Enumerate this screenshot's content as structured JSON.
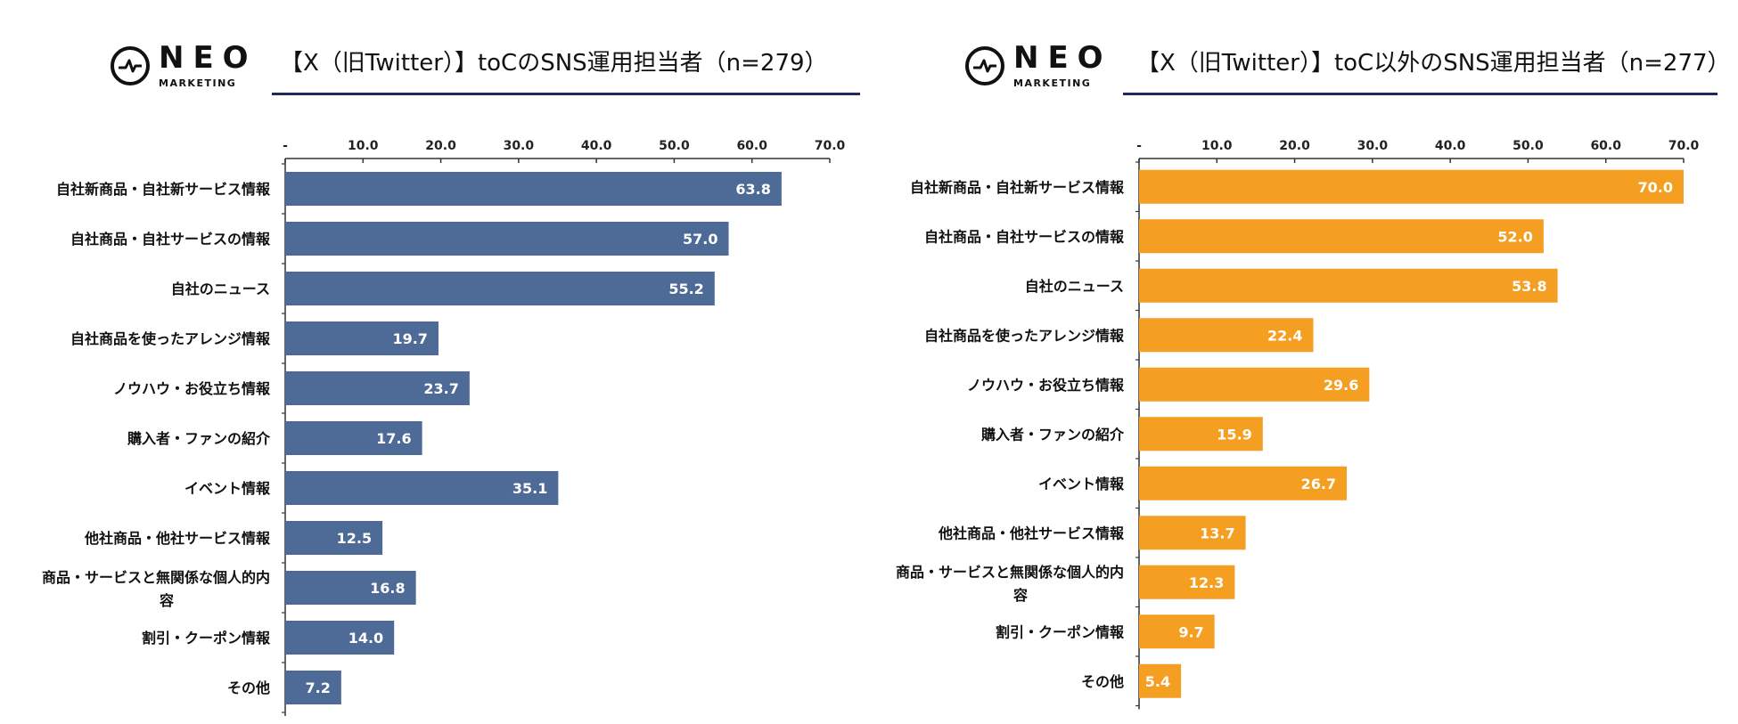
{
  "logo": {
    "word": "NEO",
    "sub": "MARKETING"
  },
  "categories": [
    "自社新商品・自社新サービス情報",
    "自社商品・自社サービスの情報",
    "自社のニュース",
    "自社商品を使ったアレンジ情報",
    "ノウハウ・お役立ち情報",
    "購入者・ファンの紹介",
    "イベント情報",
    "他社商品・他社サービス情報",
    "商品・サービスと無関係な個人的内容",
    "割引・クーポン情報",
    "その他"
  ],
  "chart_data": [
    {
      "type": "bar",
      "orientation": "horizontal",
      "title": "【X（旧Twitter）】toCのSNS運用担当者（n=279）",
      "color": "#4e6a96",
      "xlim": [
        0,
        70
      ],
      "ticks": [
        "-",
        "10.0",
        "20.0",
        "30.0",
        "40.0",
        "50.0",
        "60.0",
        "70.0"
      ],
      "values": [
        63.8,
        57.0,
        55.2,
        19.7,
        23.7,
        17.6,
        35.1,
        12.5,
        16.8,
        14.0,
        7.2
      ],
      "labels": [
        "63.8",
        "57.0",
        "55.2",
        "19.7",
        "23.7",
        "17.6",
        "35.1",
        "12.5",
        "16.8",
        "14.0",
        "7.2"
      ]
    },
    {
      "type": "bar",
      "orientation": "horizontal",
      "title": "【X（旧Twitter）】toC以外のSNS運用担当者（n=277）",
      "color": "#f49e22",
      "xlim": [
        0,
        70
      ],
      "ticks": [
        "-",
        "10.0",
        "20.0",
        "30.0",
        "40.0",
        "50.0",
        "60.0",
        "70.0"
      ],
      "values": [
        70.0,
        52.0,
        53.8,
        22.4,
        29.6,
        15.9,
        26.7,
        13.7,
        12.3,
        9.7,
        5.4
      ],
      "labels": [
        "70.0",
        "52.0",
        "53.8",
        "22.4",
        "29.6",
        "15.9",
        "26.7",
        "13.7",
        "12.3",
        "9.7",
        "5.4"
      ]
    }
  ]
}
